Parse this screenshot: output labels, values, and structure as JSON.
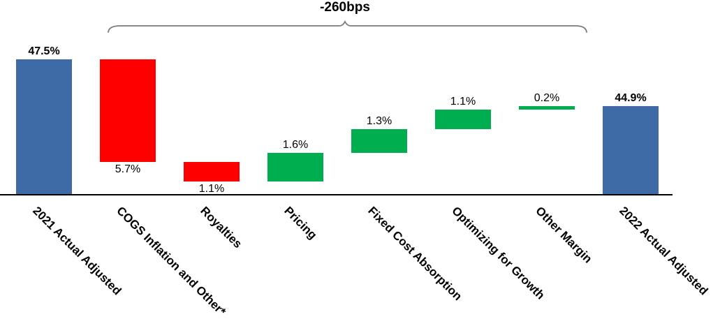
{
  "chart_data": {
    "type": "bar",
    "subtype": "waterfall",
    "annotation": {
      "text": "-260bps",
      "spans_from_category": "COGS Inflation and Other*",
      "spans_to_category": "Other Margin"
    },
    "categories": [
      "2021 Actual Adjusted",
      "COGS Inflation and Other*",
      "Royalties",
      "Pricing",
      "Fixed Cost Absorption",
      "Optimizing for Growth",
      "Other Margin",
      "2022 Actual Adjusted"
    ],
    "bars": [
      {
        "category": "2021 Actual Adjusted",
        "value_label": "47.5%",
        "value": 47.5,
        "direction": "total",
        "label_position": "above",
        "bold": true
      },
      {
        "category": "COGS Inflation and Other*",
        "value_label": "5.7%",
        "value": -5.7,
        "direction": "decrease",
        "label_position": "below",
        "bold": false
      },
      {
        "category": "Royalties",
        "value_label": "1.1%",
        "value": -1.1,
        "direction": "decrease",
        "label_position": "below",
        "bold": false
      },
      {
        "category": "Pricing",
        "value_label": "1.6%",
        "value": 1.6,
        "direction": "increase",
        "label_position": "above",
        "bold": false
      },
      {
        "category": "Fixed Cost Absorption",
        "value_label": "1.3%",
        "value": 1.3,
        "direction": "increase",
        "label_position": "above",
        "bold": false
      },
      {
        "category": "Optimizing for Growth",
        "value_label": "1.1%",
        "value": 1.1,
        "direction": "increase",
        "label_position": "above",
        "bold": false
      },
      {
        "category": "Other Margin",
        "value_label": "0.2%",
        "value": 0.2,
        "direction": "increase",
        "label_position": "above",
        "bold": false
      },
      {
        "category": "2022 Actual Adjusted",
        "value_label": "44.9%",
        "value": 44.9,
        "direction": "total",
        "label_position": "above",
        "bold": true
      }
    ],
    "colors": {
      "total": "#3E6BA5",
      "decrease": "#FF0000",
      "increase": "#00AE50",
      "axis": "#000000",
      "brace": "#7A7A7A"
    },
    "axis": {
      "baseline_value_pct": 40,
      "gridlines": false,
      "y_axis_visible": false,
      "x_axis_line_visible": true
    }
  }
}
